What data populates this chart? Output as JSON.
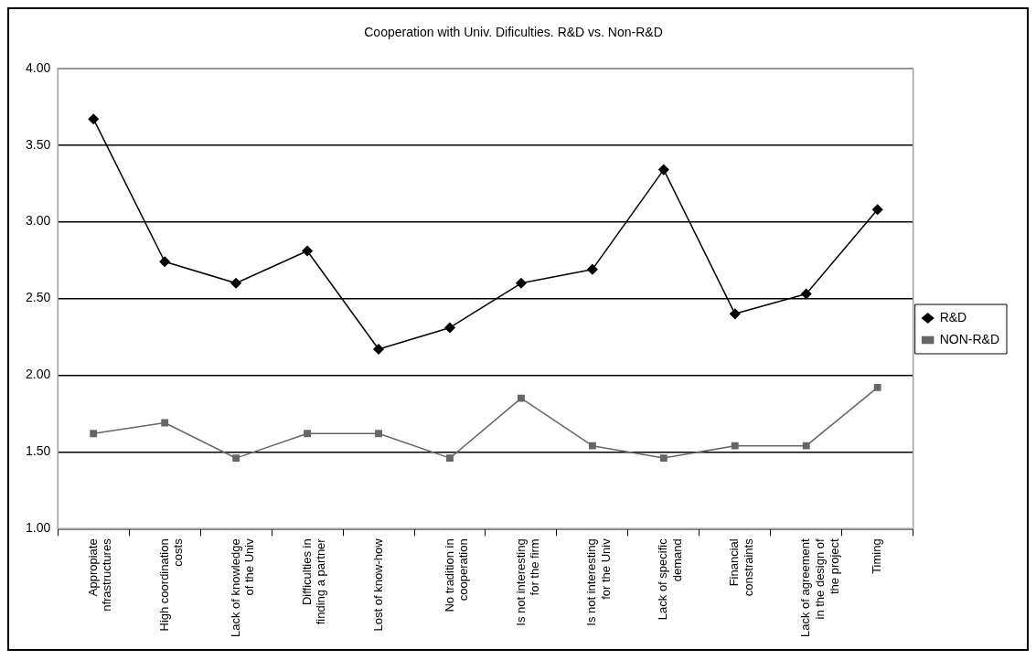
{
  "chart_data": {
    "type": "line",
    "title": "Cooperation with Univ. Dificulties. R&D vs. Non-R&D",
    "categories": [
      "Appropiate nfrastructures",
      "High coordination costs",
      "Lack of knowledge of the Univ",
      "Difficulties in finding a partner",
      "Lost of know-how",
      "No tradition in cooperation",
      "Is not interesting for the firm",
      "Is not interesting for the Univ",
      "Lack of specific demand",
      "Financial constraints",
      "Lack of agreement in the design of the project",
      "Timing"
    ],
    "series": [
      {
        "name": "R&D",
        "color": "#000000",
        "marker": "diamond",
        "values": [
          3.67,
          2.74,
          2.6,
          2.81,
          2.17,
          2.31,
          2.6,
          2.69,
          3.34,
          2.4,
          2.53,
          3.08
        ]
      },
      {
        "name": "NON-R&D",
        "color": "#666666",
        "marker": "square",
        "values": [
          1.62,
          1.69,
          1.46,
          1.62,
          1.62,
          1.46,
          1.85,
          1.54,
          1.46,
          1.54,
          1.54,
          1.92
        ]
      }
    ],
    "ylim": [
      1,
      4
    ],
    "yticks": [
      {
        "value": 1,
        "label": "1.00"
      },
      {
        "value": 1.5,
        "label": "1.50"
      },
      {
        "value": 2,
        "label": "2.00"
      },
      {
        "value": 2.5,
        "label": "2.50"
      },
      {
        "value": 3,
        "label": "3.00"
      },
      {
        "value": 3.5,
        "label": "3.50"
      },
      {
        "value": 4,
        "label": "4.00"
      }
    ],
    "grid": "y",
    "legend": "right",
    "line_style": "solid"
  }
}
